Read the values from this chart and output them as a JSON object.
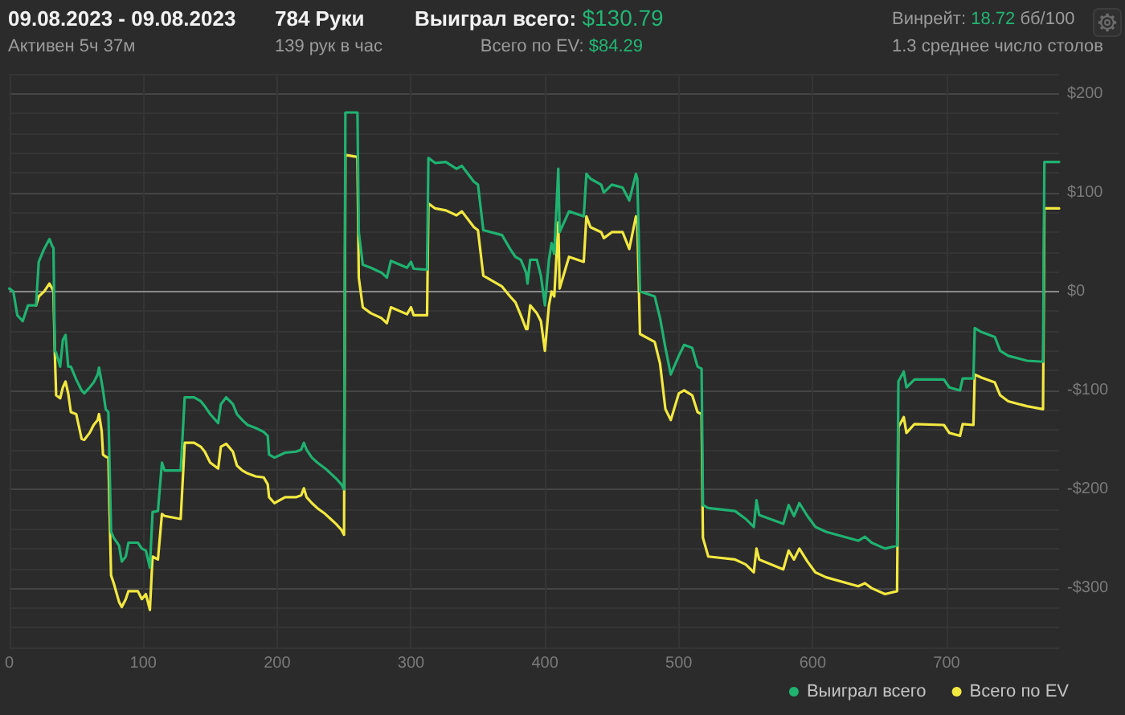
{
  "chart_data": {
    "type": "line",
    "title": "09.08.2023 - 09.08.2023",
    "subtitle": "Активен 5ч 37м",
    "annotations": [
      "784 Руки",
      "139 рук в час",
      "Выиграл всего:",
      "$130.79",
      "Всего по EV:",
      "$84.29",
      "Винрейт:",
      "18.72",
      "бб/100",
      "1.3 среднее число столов"
    ],
    "x": [
      0,
      3,
      6,
      10,
      14,
      20,
      22,
      26,
      30,
      32,
      33,
      34,
      35,
      38,
      40,
      42,
      44,
      46,
      50,
      54,
      56,
      60,
      63,
      66,
      67,
      69,
      70,
      72,
      74,
      76,
      78,
      82,
      84,
      87,
      89,
      96,
      99,
      102,
      105,
      107,
      111,
      114,
      116,
      128,
      131,
      138,
      143,
      146,
      150,
      156,
      158,
      162,
      167,
      170,
      174,
      178,
      184,
      190,
      193,
      194,
      198,
      206,
      214,
      218,
      220,
      222,
      226,
      230,
      236,
      240,
      244,
      248,
      250,
      251,
      260,
      261,
      264,
      270,
      278,
      282,
      285,
      297,
      300,
      302,
      312,
      313,
      318,
      326,
      334,
      338,
      347,
      350,
      354,
      368,
      374,
      378,
      382,
      386,
      387,
      389,
      394,
      397,
      400,
      403,
      405,
      407,
      410,
      411,
      418,
      429,
      431,
      434,
      442,
      444,
      450,
      458,
      463,
      468,
      469,
      471,
      482,
      486,
      490,
      494,
      500,
      504,
      510,
      514,
      517,
      518,
      522,
      542,
      550,
      556,
      558,
      560,
      578,
      582,
      586,
      590,
      596,
      602,
      610,
      634,
      639,
      644,
      654,
      663,
      664,
      668,
      670,
      676,
      698,
      702,
      710,
      712,
      720,
      721,
      726,
      736,
      740,
      746,
      760,
      772,
      773,
      784
    ],
    "series": [
      {
        "name": "Выиграл всего",
        "color": "#1fb271",
        "values": [
          3,
          0,
          -24,
          -30,
          -14,
          -14,
          30,
          43,
          53,
          46,
          44,
          -60,
          -62,
          -76,
          -49,
          -44,
          -76,
          -76,
          -89,
          -100,
          -103,
          -97,
          -92,
          -84,
          -77,
          -92,
          -100,
          -119,
          -122,
          -243,
          -249,
          -257,
          -273,
          -268,
          -254,
          -254,
          -260,
          -262,
          -279,
          -223,
          -222,
          -173,
          -181,
          -181,
          -107,
          -107,
          -111,
          -116,
          -124,
          -133,
          -114,
          -107,
          -114,
          -124,
          -130,
          -135,
          -138,
          -142,
          -146,
          -165,
          -168,
          -163,
          -162,
          -160,
          -153,
          -160,
          -168,
          -173,
          -179,
          -184,
          -189,
          -195,
          -200,
          181,
          181,
          60,
          27,
          24,
          19,
          14,
          31,
          24,
          30,
          23,
          22,
          135,
          130,
          131,
          124,
          127,
          111,
          108,
          62,
          57,
          43,
          35,
          32,
          19,
          8,
          32,
          32,
          16,
          -14,
          32,
          49,
          38,
          124,
          60,
          81,
          76,
          119,
          114,
          108,
          100,
          108,
          105,
          92,
          119,
          114,
          0,
          -5,
          -27,
          -57,
          -84,
          -65,
          -54,
          -57,
          -76,
          -78,
          -216,
          -219,
          -222,
          -230,
          -238,
          -211,
          -226,
          -235,
          -216,
          -227,
          -214,
          -227,
          -238,
          -243,
          -252,
          -248,
          -254,
          -260,
          -257,
          -91,
          -81,
          -97,
          -89,
          -89,
          -97,
          -100,
          -88,
          -88,
          -37,
          -41,
          -46,
          -60,
          -65,
          -70,
          -71,
          131,
          131
        ]
      },
      {
        "name": "Всего по EV",
        "color": "#f2e840",
        "values": [
          null,
          null,
          null,
          null,
          null,
          -14,
          -5,
          0,
          8,
          3,
          0,
          -62,
          -105,
          -108,
          -97,
          -91,
          -103,
          -122,
          -124,
          -149,
          -150,
          -143,
          -135,
          -130,
          -124,
          -141,
          -165,
          -167,
          -168,
          -287,
          -295,
          -314,
          -319,
          -311,
          -303,
          -303,
          -311,
          -306,
          -322,
          -268,
          -271,
          -225,
          -227,
          -230,
          -153,
          -153,
          -157,
          -162,
          -173,
          -179,
          -157,
          -154,
          -162,
          -176,
          -181,
          -184,
          -187,
          -188,
          -195,
          -208,
          -214,
          -208,
          -208,
          -206,
          -199,
          -208,
          -214,
          -219,
          -225,
          -230,
          -235,
          -241,
          -246,
          138,
          136,
          14,
          -16,
          -22,
          -27,
          -32,
          -16,
          -23,
          -16,
          -24,
          -24,
          89,
          84,
          82,
          77,
          81,
          65,
          62,
          16,
          5,
          -5,
          -11,
          -24,
          -38,
          -38,
          -14,
          -22,
          -30,
          -60,
          -14,
          0,
          -5,
          70,
          3,
          35,
          30,
          76,
          65,
          60,
          54,
          60,
          60,
          43,
          76,
          70,
          -43,
          -51,
          -73,
          -119,
          -130,
          -103,
          -100,
          -105,
          -122,
          -124,
          -249,
          -268,
          -271,
          -276,
          -284,
          -260,
          -271,
          -281,
          -262,
          -271,
          -260,
          -273,
          -284,
          -289,
          -298,
          -295,
          -300,
          -306,
          -303,
          -137,
          -127,
          -143,
          -134,
          -135,
          -143,
          -146,
          -134,
          -135,
          -84,
          -87,
          -92,
          -105,
          -111,
          -116,
          -119,
          84,
          84
        ]
      }
    ],
    "xlim": [
      0,
      784
    ],
    "xticks": [
      0,
      100,
      200,
      300,
      400,
      500,
      600,
      700
    ],
    "ylim": [
      -360,
      220
    ],
    "yticks": [
      {
        "value": -360,
        "label": null
      },
      {
        "value": -340,
        "label": null
      },
      {
        "value": -320,
        "label": null
      },
      {
        "value": -300,
        "label": "-$300"
      },
      {
        "value": -280,
        "label": null
      },
      {
        "value": -260,
        "label": null
      },
      {
        "value": -240,
        "label": null
      },
      {
        "value": -220,
        "label": null
      },
      {
        "value": -200,
        "label": "-$200"
      },
      {
        "value": -180,
        "label": null
      },
      {
        "value": -160,
        "label": null
      },
      {
        "value": -140,
        "label": null
      },
      {
        "value": -120,
        "label": null
      },
      {
        "value": -100,
        "label": "-$100"
      },
      {
        "value": -80,
        "label": null
      },
      {
        "value": -60,
        "label": null
      },
      {
        "value": -40,
        "label": null
      },
      {
        "value": -20,
        "label": null
      },
      {
        "value": 0,
        "label": "$0"
      },
      {
        "value": 20,
        "label": null
      },
      {
        "value": 40,
        "label": null
      },
      {
        "value": 60,
        "label": null
      },
      {
        "value": 80,
        "label": null
      },
      {
        "value": 100,
        "label": "$100"
      },
      {
        "value": 120,
        "label": null
      },
      {
        "value": 140,
        "label": null
      },
      {
        "value": 160,
        "label": null
      },
      {
        "value": 180,
        "label": null
      },
      {
        "value": 200,
        "label": "$200"
      },
      {
        "value": 220,
        "label": null
      }
    ],
    "ref_lines": [
      {
        "axis": "y",
        "value": 0,
        "color": "#8a8a8a"
      }
    ],
    "grid": true,
    "legend": "bottom right",
    "marker": "none",
    "line_style": "solid"
  }
}
